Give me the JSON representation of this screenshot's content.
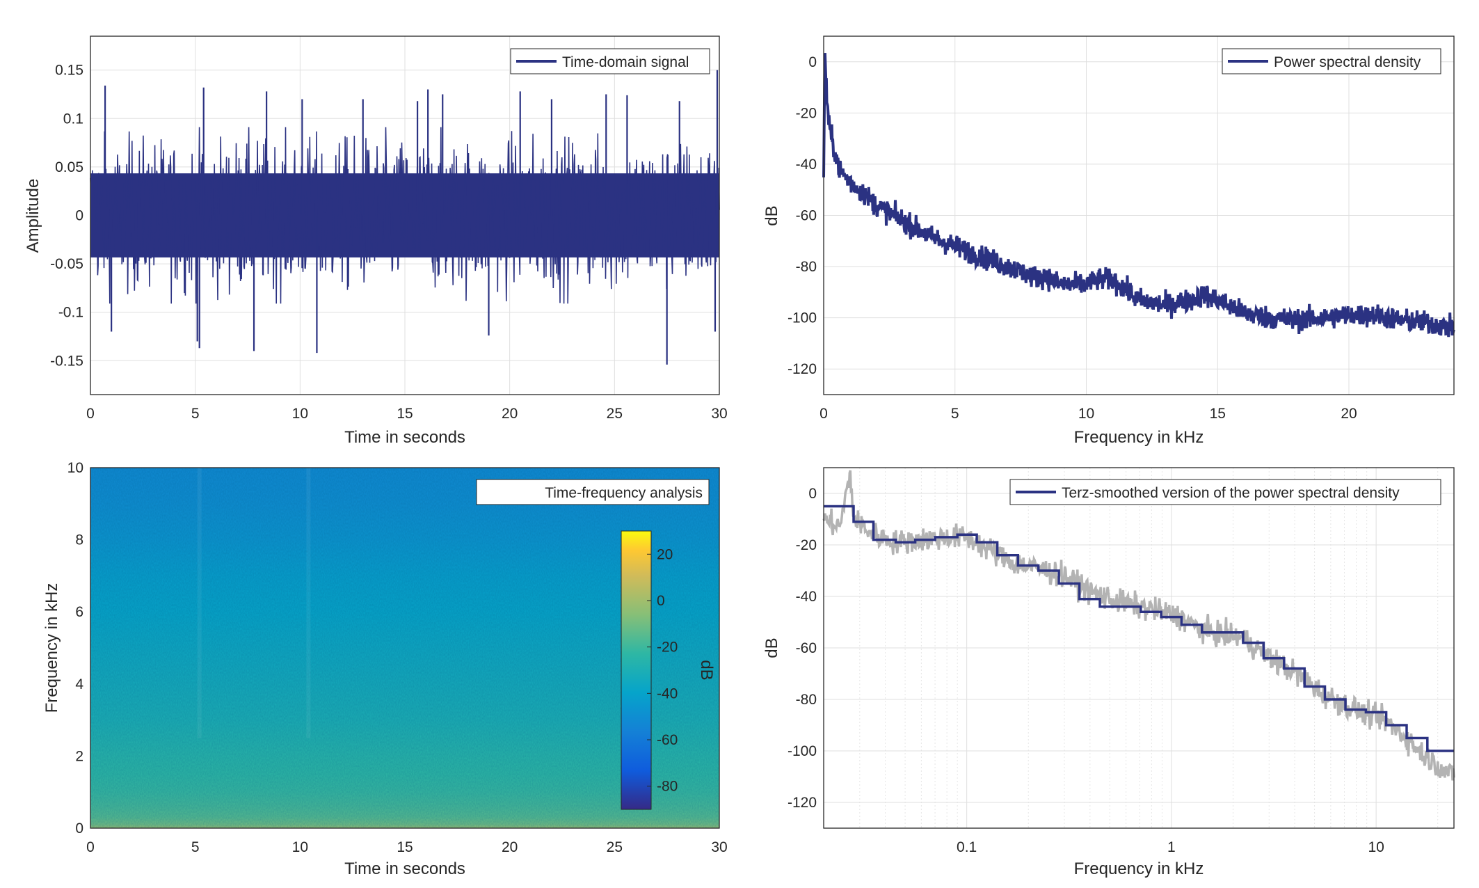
{
  "colors": {
    "series": "#2b3282",
    "raw": "#b3b3b3",
    "axis": "#262626",
    "grid": "#dfdfdf"
  },
  "chart_data": [
    {
      "id": "signal",
      "type": "line",
      "title": "",
      "xlabel": "Time in seconds",
      "ylabel": "Amplitude",
      "xlim": [
        0,
        30
      ],
      "ylim": [
        -0.185,
        0.185
      ],
      "xticks": [
        0,
        5,
        10,
        15,
        20,
        25,
        30
      ],
      "xticklabels": [
        "0",
        "5",
        "10",
        "15",
        "20",
        "25",
        "30"
      ],
      "yticks": [
        -0.15,
        -0.1,
        -0.05,
        0,
        0.05,
        0.1,
        0.15
      ],
      "yticklabels": [
        "-0.15",
        "-0.1",
        "-0.05",
        "0",
        "0.05",
        "0.1",
        "0.15"
      ],
      "grid": true,
      "legend": {
        "location": "top-right",
        "entries": [
          "Time-domain signal"
        ]
      },
      "series": [
        {
          "name": "Time-domain signal",
          "envelope": {
            "x": [
              0,
              5,
              10,
              15,
              20,
              25,
              30
            ],
            "typical_peak": [
              0.07,
              0.07,
              0.07,
              0.07,
              0.07,
              0.07,
              0.07
            ]
          },
          "peaks": [
            {
              "x": 0.7,
              "y": 0.134
            },
            {
              "x": 1.0,
              "y": -0.12
            },
            {
              "x": 5.4,
              "y": 0.132
            },
            {
              "x": 5.1,
              "y": -0.13
            },
            {
              "x": 5.2,
              "y": -0.137
            },
            {
              "x": 7.8,
              "y": -0.14
            },
            {
              "x": 8.4,
              "y": 0.128
            },
            {
              "x": 10.1,
              "y": 0.12
            },
            {
              "x": 10.8,
              "y": -0.142
            },
            {
              "x": 13.0,
              "y": 0.12
            },
            {
              "x": 15.6,
              "y": 0.118
            },
            {
              "x": 16.1,
              "y": 0.13
            },
            {
              "x": 16.8,
              "y": 0.125
            },
            {
              "x": 19.0,
              "y": -0.124
            },
            {
              "x": 20.5,
              "y": 0.128
            },
            {
              "x": 22.0,
              "y": 0.12
            },
            {
              "x": 24.6,
              "y": 0.125
            },
            {
              "x": 25.6,
              "y": 0.124
            },
            {
              "x": 27.5,
              "y": -0.154
            },
            {
              "x": 28.1,
              "y": 0.118
            },
            {
              "x": 29.9,
              "y": 0.15
            },
            {
              "x": 29.8,
              "y": -0.12
            }
          ]
        }
      ]
    },
    {
      "id": "psd",
      "type": "line",
      "title": "",
      "xlabel": "Frequency in kHz",
      "ylabel": "dB",
      "xlim": [
        0,
        24
      ],
      "ylim": [
        -130,
        10
      ],
      "xticks": [
        0,
        5,
        10,
        15,
        20
      ],
      "xticklabels": [
        "0",
        "5",
        "10",
        "15",
        "20"
      ],
      "yticks": [
        -120,
        -100,
        -80,
        -60,
        -40,
        -20,
        0
      ],
      "yticklabels": [
        "-120",
        "-100",
        "-80",
        "-60",
        "-40",
        "-20",
        "0"
      ],
      "grid": true,
      "legend": {
        "location": "top-right",
        "entries": [
          "Power spectral density"
        ]
      },
      "series": [
        {
          "name": "Power spectral density",
          "x": [
            0,
            0.05,
            0.1,
            0.2,
            0.35,
            0.6,
            1,
            1.5,
            2,
            3,
            4,
            5,
            6,
            7,
            8,
            8.5,
            9,
            10,
            10.5,
            11,
            12,
            13,
            14,
            14.5,
            15,
            16,
            17,
            18,
            19,
            20,
            21,
            22,
            23,
            24
          ],
          "y": [
            -45,
            5,
            -10,
            -25,
            -32,
            -42,
            -47,
            -51,
            -56,
            -62,
            -68,
            -72,
            -76,
            -80,
            -84,
            -84,
            -87,
            -87,
            -85,
            -85,
            -93,
            -95,
            -93,
            -91,
            -93,
            -98,
            -100,
            -101,
            -100,
            -99,
            -99,
            -101,
            -102,
            -104
          ]
        }
      ]
    },
    {
      "id": "spectrogram",
      "type": "heatmap",
      "title": "",
      "xlabel": "Time in seconds",
      "ylabel": "Frequency in kHz",
      "xlim": [
        0,
        30
      ],
      "ylim": [
        0,
        10
      ],
      "xticks": [
        0,
        5,
        10,
        15,
        20,
        25,
        30
      ],
      "xticklabels": [
        "0",
        "5",
        "10",
        "15",
        "20",
        "25",
        "30"
      ],
      "yticks": [
        0,
        2,
        4,
        6,
        8,
        10
      ],
      "yticklabels": [
        "0",
        "2",
        "4",
        "6",
        "8",
        "10"
      ],
      "legend": {
        "location": "top-right",
        "entries": [
          "Time-frequency analysis"
        ]
      },
      "colorbar": {
        "label": "dB",
        "range": [
          -90,
          30
        ],
        "ticks": [
          20,
          0,
          -20,
          -40,
          -60,
          -80
        ],
        "ticklabels": [
          "20",
          "0",
          "-20",
          "-40",
          "-60",
          "-80"
        ],
        "colormap": "parula"
      },
      "profile_db_by_frequency": {
        "freq_khz": [
          0,
          0.1,
          0.3,
          0.6,
          1,
          1.5,
          2,
          3,
          4,
          5,
          6,
          7,
          8,
          9,
          10
        ],
        "db": [
          -2,
          -10,
          -15,
          -18,
          -21,
          -23,
          -25,
          -30,
          -33,
          -36,
          -39,
          -42,
          -47,
          -50,
          -52
        ]
      }
    },
    {
      "id": "terz",
      "type": "line",
      "title": "",
      "xlabel": "Frequency in kHz",
      "ylabel": "dB",
      "xscale": "log",
      "xlim": [
        0.02,
        24
      ],
      "ylim": [
        -130,
        10
      ],
      "xticks": [
        0.1,
        1,
        10
      ],
      "xticklabels": [
        "0.1",
        "1",
        "10"
      ],
      "yticks": [
        -120,
        -100,
        -80,
        -60,
        -40,
        -20,
        0
      ],
      "yticklabels": [
        "-120",
        "-100",
        "-80",
        "-60",
        "-40",
        "-20",
        "0"
      ],
      "grid": true,
      "legend": {
        "location": "top-right",
        "entries": [
          "Terz-smoothed version of the power spectral density"
        ]
      },
      "series": [
        {
          "name": "Terz-smoothed version of the power spectral density",
          "step_edges": [
            0.02,
            0.028,
            0.035,
            0.045,
            0.056,
            0.07,
            0.09,
            0.112,
            0.141,
            0.178,
            0.224,
            0.282,
            0.355,
            0.447,
            0.562,
            0.708,
            0.891,
            1.12,
            1.41,
            1.78,
            2.24,
            2.82,
            3.55,
            4.47,
            5.62,
            7.08,
            8.91,
            11.2,
            14.1,
            17.8,
            24
          ],
          "values": [
            -5,
            -11,
            -18,
            -19,
            -18,
            -17,
            -16,
            -19,
            -24,
            -28,
            -30,
            -35,
            -41,
            -44,
            -44,
            -46,
            -48,
            -51,
            -54,
            -54,
            -58,
            -64,
            -68,
            -75,
            -80,
            -84,
            -85,
            -90,
            -95,
            -100
          ]
        },
        {
          "name": "",
          "role": "unsmoothed power spectral density",
          "x": [
            0.02,
            0.024,
            0.027,
            0.028,
            0.03,
            0.035,
            0.045,
            0.06,
            0.08,
            0.1,
            0.13,
            0.17,
            0.22,
            0.3,
            0.4,
            0.55,
            0.7,
            0.9,
            1.1,
            1.4,
            1.8,
            2.2,
            2.8,
            3.5,
            4.5,
            5.5,
            7,
            9,
            11,
            14,
            18,
            24
          ],
          "y": [
            -10,
            -13,
            8,
            -10,
            -12,
            -16,
            -19,
            -18,
            -17,
            -17,
            -22,
            -27,
            -29,
            -32,
            -38,
            -42,
            -44,
            -46,
            -48,
            -53,
            -55,
            -56,
            -62,
            -67,
            -72,
            -78,
            -82,
            -86,
            -88,
            -95,
            -103,
            -110
          ]
        }
      ]
    }
  ]
}
